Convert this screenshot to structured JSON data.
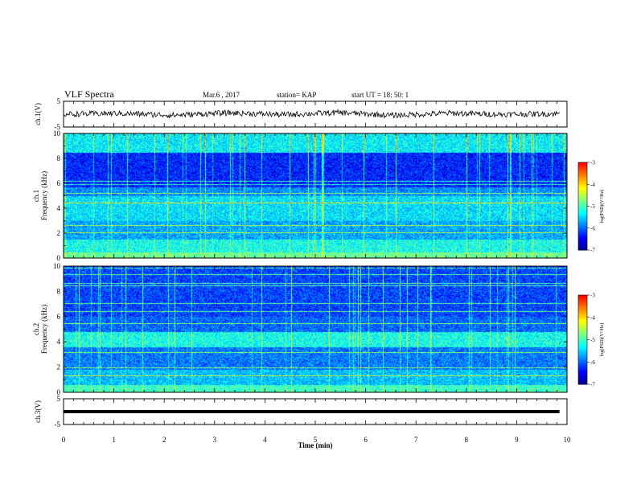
{
  "header": {
    "title": "VLF Spectra",
    "date": "Mar.6  , 2017",
    "station": "station= KAP",
    "start_ut": "start  UT  =   18: 50: 1"
  },
  "chart_data": [
    {
      "type": "line",
      "panel": "ch1-waveform",
      "ylabel": "ch.1(V)",
      "yticks": [
        "5",
        "-5"
      ],
      "ylim": [
        -5,
        5
      ],
      "xlim": [
        0,
        10
      ],
      "x_end": 9.85,
      "series": [
        {
          "description_values": "noisy waveform centered near 0 V",
          "values": [
            0.0,
            0.3,
            -0.4,
            0.5,
            -0.2,
            0.6,
            -0.5,
            0.4,
            -0.1,
            0.2
          ]
        }
      ]
    },
    {
      "type": "heatmap",
      "panel": "ch1-spectrogram",
      "ylabel": "Frequency  (kHz)",
      "channel_label": "ch.1",
      "yticks": [
        "0",
        "2",
        "4",
        "6",
        "8",
        "10"
      ],
      "ylim": [
        0,
        10
      ],
      "xlim": [
        0,
        10
      ],
      "colorbar": {
        "label": "log(PSD)(V²/Hz)",
        "ticks": [
          "-3",
          "-4",
          "-5",
          "-6",
          "-7"
        ],
        "range": [
          -7,
          -3
        ]
      }
    },
    {
      "type": "heatmap",
      "panel": "ch2-spectrogram",
      "ylabel": "Frequency  (kHz)",
      "channel_label": "ch.2",
      "yticks": [
        "0",
        "2",
        "4",
        "6",
        "8",
        "10"
      ],
      "ylim": [
        0,
        10
      ],
      "xlim": [
        0,
        10
      ],
      "colorbar": {
        "label": "log(PSD)(V²/Hz)",
        "ticks": [
          "-3",
          "-4",
          "-5",
          "-6",
          "-7"
        ],
        "range": [
          -7,
          -3
        ]
      }
    },
    {
      "type": "line",
      "panel": "ch3-waveform",
      "ylabel": "ch.3(V)",
      "yticks": [
        "5",
        "-5"
      ],
      "ylim": [
        -5,
        5
      ],
      "xlim": [
        0,
        10
      ],
      "x_end": 9.85,
      "series": [
        {
          "values": [
            0,
            0
          ]
        }
      ]
    }
  ],
  "xaxis": {
    "label": "Time  (min)",
    "ticks": [
      "0",
      "1",
      "2",
      "3",
      "4",
      "5",
      "6",
      "7",
      "8",
      "9",
      "10"
    ]
  },
  "colors": {
    "colormap": [
      "#000080",
      "#0000ff",
      "#0080ff",
      "#00ffff",
      "#80ff80",
      "#ffff00",
      "#ff8000",
      "#ff0000",
      "#ffffff"
    ]
  }
}
